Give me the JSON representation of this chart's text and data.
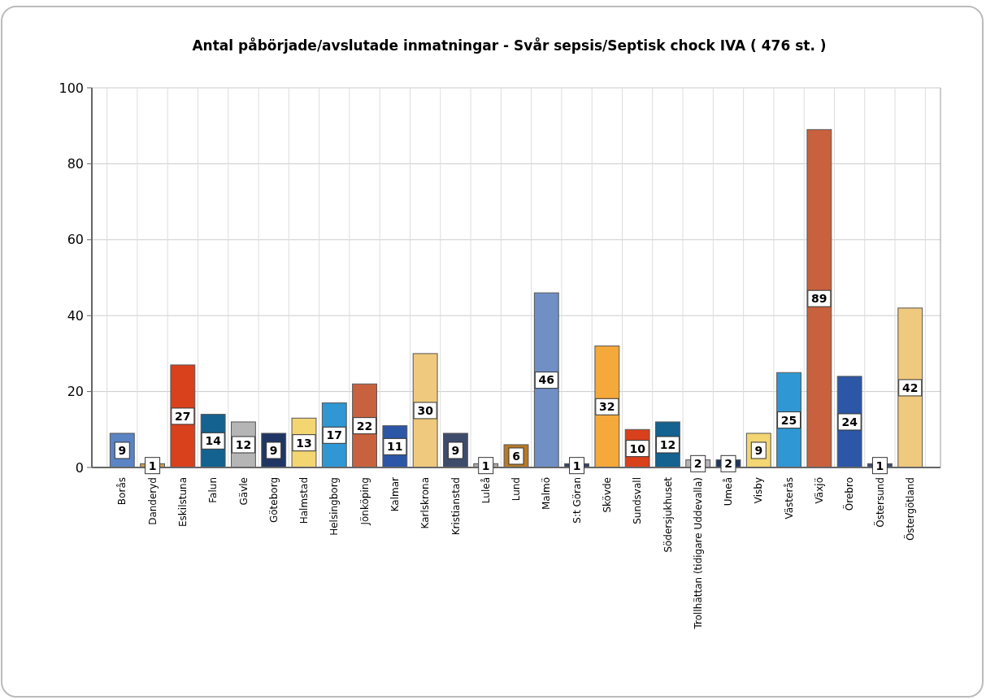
{
  "chart_data": {
    "type": "bar",
    "title": "Antal påbörjade/avslutade inmatningar - Svår sepsis/Septisk chock IVA ( 476 st. )",
    "categories": [
      "Borås",
      "Danderyd",
      "Eskilstuna",
      "Falun",
      "Gävle",
      "Göteborg",
      "Halmstad",
      "Helsingborg",
      "Jönköping",
      "Kalmar",
      "Karlskrona",
      "Kristianstad",
      "Luleå",
      "Lund",
      "Malmö",
      "S:t Göran",
      "Skövde",
      "Sundsvall",
      "Södersjukhuset",
      "Trollhättan (tidigare Uddevalla)",
      "Umeå",
      "Visby",
      "Västerås",
      "Växjö",
      "Örebro",
      "Östersund",
      "Östergötland"
    ],
    "values": [
      9,
      1,
      27,
      14,
      12,
      9,
      13,
      17,
      22,
      11,
      30,
      9,
      1,
      6,
      46,
      1,
      32,
      10,
      12,
      2,
      2,
      9,
      25,
      89,
      24,
      1,
      42
    ],
    "colors": [
      "#5a84c4",
      "#c89a50",
      "#d9401c",
      "#13628f",
      "#b5b5b5",
      "#1f3664",
      "#f3d572",
      "#2f97d3",
      "#c8613e",
      "#2c56a6",
      "#efc97d",
      "#3e4c6c",
      "#a8a8a8",
      "#b77a2a",
      "#6f8fc5",
      "#334466",
      "#f5a93a",
      "#d9401c",
      "#13628f",
      "#b5b5b5",
      "#1f3664",
      "#f3d572",
      "#2f97d3",
      "#c8613e",
      "#2c56a6",
      "#3e4c6c",
      "#efc97d"
    ],
    "ylim": [
      0,
      100
    ],
    "yticks": [
      0,
      20,
      40,
      60,
      80,
      100
    ],
    "grid": true,
    "data_labels": true
  }
}
